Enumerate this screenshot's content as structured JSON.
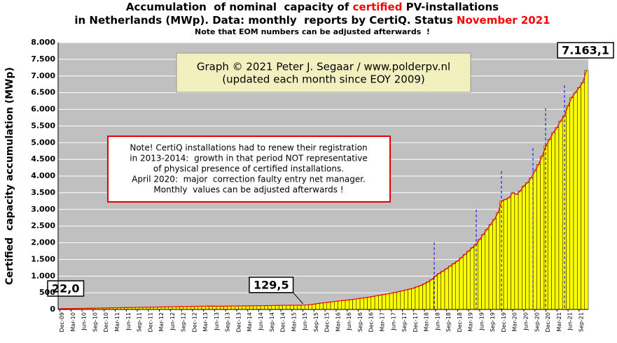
{
  "chart_data": {
    "type": "bar",
    "title": [
      [
        "Accumulation  of nominal  capacity of ",
        "certified",
        " PV-installations"
      ],
      [
        "in Netherlands (MWp). Data: monthly  reports by CertiQ. Status ",
        "November 2021"
      ]
    ],
    "subtitle": "Note that EOM numbers can be adjusted afterwards  !",
    "y_label": "Certified  capacity accumulation (MWp)",
    "credit": [
      "Graph © 2021 Peter J. Segaar / www.polderpv.nl",
      "(updated each month since EOY 2009)"
    ],
    "note": [
      "Note! CertiQ installations had to renew their registration",
      "in 2013-2014:  growth in that period NOT representative",
      "of physical presence of certified installations.",
      "April 2020:  major  correction faulty entry net manager.",
      "Monthly  values can be adjusted afterwards !"
    ],
    "color": "#ffff00",
    "trend_color": "#ff0000",
    "categories": [
      "Dec-09",
      null,
      null,
      "Mar-10",
      null,
      null,
      "Jun-10",
      null,
      null,
      "Sep-10",
      null,
      null,
      "Dec-10",
      null,
      null,
      "Mar-11",
      null,
      null,
      "Jun-11",
      null,
      null,
      "Sep-11",
      null,
      null,
      "Dec-11",
      null,
      null,
      "Mar-12",
      null,
      null,
      "Jun-12",
      null,
      null,
      "Sep-12",
      null,
      null,
      "Dec-12",
      null,
      null,
      "Mar-13",
      null,
      null,
      "Jun-13",
      null,
      null,
      "Sep-13",
      null,
      null,
      "Dec-13",
      null,
      null,
      "Mar-14",
      null,
      null,
      "Jun-14",
      null,
      null,
      "Sep-14",
      null,
      null,
      "Dec-14",
      null,
      null,
      "Mar-15",
      null,
      null,
      "Jun-15",
      null,
      null,
      "Sep-15",
      null,
      null,
      "Dec-15",
      null,
      null,
      "Mar-16",
      null,
      null,
      "Jun-16",
      null,
      null,
      "Sep-16",
      null,
      null,
      "Dec-16",
      null,
      null,
      "Mar-17",
      null,
      null,
      "Jun-17",
      null,
      null,
      "Sep-17",
      null,
      null,
      "Dec-17",
      null,
      null,
      "Mar-18",
      null,
      null,
      "Jun-18",
      null,
      null,
      "Sep-18",
      null,
      null,
      "Dec-18",
      null,
      null,
      "Mar-19",
      null,
      null,
      "Jun-19",
      null,
      null,
      "Sep-19",
      null,
      null,
      "Dec-19",
      null,
      null,
      "Mar-20",
      null,
      null,
      "Jun-20",
      null,
      null,
      "Sep-20",
      null,
      null,
      "Dec-20",
      null,
      null,
      "Mar-21",
      null,
      null,
      "Jun-21",
      null,
      null,
      "Sep-21",
      null,
      null
    ],
    "values": [
      22.0,
      24,
      26,
      28,
      29,
      31,
      33,
      35,
      37,
      39,
      41,
      43,
      45,
      47,
      49,
      51,
      53,
      55,
      57,
      58,
      60,
      62,
      64,
      66,
      68,
      70,
      72,
      74,
      76,
      78,
      80,
      82,
      84,
      86,
      88,
      90,
      92,
      94,
      96,
      98,
      100,
      102,
      100,
      98,
      97,
      99,
      101,
      103,
      105,
      106,
      107,
      108,
      110,
      111,
      112,
      114,
      115,
      117,
      119,
      121,
      123,
      124,
      125,
      126,
      127,
      128,
      129.5,
      135,
      145,
      160,
      175,
      190,
      205,
      220,
      232,
      245,
      258,
      270,
      283,
      296,
      310,
      325,
      340,
      355,
      372,
      390,
      410,
      430,
      450,
      470,
      490,
      510,
      535,
      560,
      585,
      610,
      640,
      680,
      720,
      770,
      830,
      900,
      1000,
      1080,
      1150,
      1220,
      1300,
      1380,
      1450,
      1550,
      1650,
      1750,
      1850,
      1950,
      2100,
      2250,
      2400,
      2550,
      2700,
      2900,
      3250,
      3300,
      3350,
      3500,
      3450,
      3550,
      3700,
      3800,
      3950,
      4150,
      4350,
      4600,
      4900,
      5100,
      5300,
      5450,
      5650,
      5800,
      6100,
      6350,
      6500,
      6650,
      6800,
      7163.1
    ],
    "value_labels": [
      "22,0",
      null,
      null,
      null,
      null,
      null,
      null,
      null,
      null,
      null,
      null,
      null,
      null,
      null,
      null,
      null,
      null,
      null,
      null,
      null,
      null,
      null,
      null,
      null,
      null,
      null,
      null,
      null,
      null,
      null,
      null,
      null,
      null,
      null,
      null,
      null,
      null,
      null,
      null,
      null,
      null,
      null,
      null,
      null,
      null,
      null,
      null,
      null,
      null,
      null,
      null,
      null,
      null,
      null,
      null,
      null,
      null,
      null,
      null,
      null,
      null,
      null,
      null,
      null,
      null,
      null,
      "129,5",
      null,
      null,
      null,
      null,
      null,
      null,
      null,
      null,
      null,
      null,
      null,
      null,
      null,
      null,
      null,
      null,
      null,
      null,
      null,
      null,
      null,
      null,
      null,
      null,
      null,
      null,
      null,
      null,
      null,
      null,
      null,
      null,
      null,
      null,
      null,
      null,
      null,
      null,
      null,
      null,
      null,
      null,
      null,
      null,
      null,
      null,
      null,
      null,
      null,
      null,
      null,
      null,
      null,
      null,
      null,
      null,
      null,
      null,
      null,
      null,
      null,
      null,
      null,
      null,
      null,
      null,
      null,
      null,
      null,
      null,
      null,
      null,
      null,
      null,
      null,
      null,
      "7.163,1"
    ],
    "ylim": [
      0,
      8000
    ],
    "yticks": [
      0,
      500,
      {
        "value": 1000,
        "label": "1.000"
      },
      {
        "value": 1500,
        "label": "1.500"
      },
      {
        "value": 2000,
        "label": "2.000"
      },
      {
        "value": 2500,
        "label": "2.500"
      },
      {
        "value": 3000,
        "label": "3.000"
      },
      {
        "value": 3500,
        "label": "3.500"
      },
      {
        "value": 4000,
        "label": "4.000"
      },
      {
        "value": 4500,
        "label": "4.500"
      },
      {
        "value": 5000,
        "label": "5.000"
      },
      {
        "value": 5500,
        "label": "5.500"
      },
      {
        "value": 6000,
        "label": "6.000"
      },
      {
        "value": 6500,
        "label": "6.500"
      },
      {
        "value": 7000,
        "label": "7.000"
      },
      {
        "value": 7500,
        "label": "7.500"
      },
      {
        "value": 8000,
        "label": "8.000"
      }
    ],
    "grid": true
  }
}
